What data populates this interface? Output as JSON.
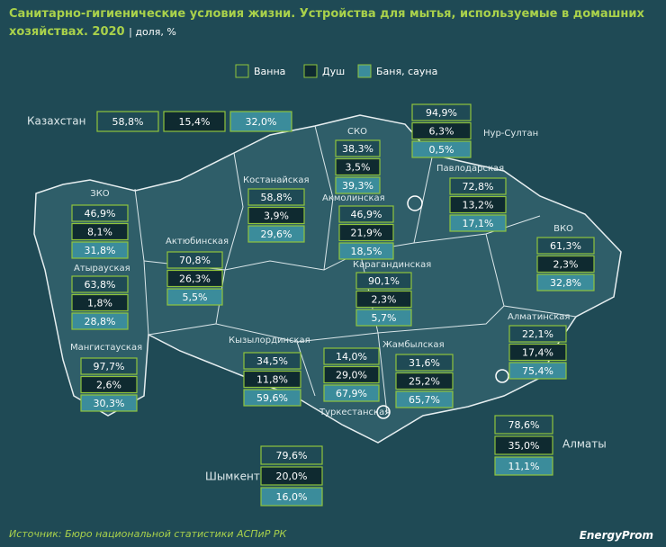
{
  "header": {
    "title": "Санитарно-гигиенические условия жизни. Устройства для мытья, используемые в домашних хозяйствах. 2020",
    "subtitle": "| доля, %"
  },
  "legend": [
    "Ванна",
    "Душ",
    "Баня, сауна"
  ],
  "regions": [
    {
      "name": "Казахстан",
      "values": [
        "58,8%",
        "15,4%",
        "32,0%"
      ]
    },
    {
      "name": "СКО",
      "values": [
        "38,3%",
        "3,5%",
        "39,3%"
      ]
    },
    {
      "name": "Нур-Султан",
      "values": [
        "94,9%",
        "6,3%",
        "0,5%"
      ]
    },
    {
      "name": "Павлодарская",
      "values": [
        "72,8%",
        "13,2%",
        "17,1%"
      ]
    },
    {
      "name": "Костанайская",
      "values": [
        "58,8%",
        "3,9%",
        "29,6%"
      ]
    },
    {
      "name": "Акмолинская",
      "values": [
        "46,9%",
        "21,9%",
        "18,5%"
      ]
    },
    {
      "name": "ЗКО",
      "values": [
        "46,9%",
        "8,1%",
        "31,8%"
      ]
    },
    {
      "name": "Атырауская",
      "values": [
        "63,8%",
        "1,8%",
        "28,8%"
      ]
    },
    {
      "name": "Актюбинская",
      "values": [
        "70,8%",
        "26,3%",
        "5,5%"
      ]
    },
    {
      "name": "ВКО",
      "values": [
        "61,3%",
        "2,3%",
        "32,8%"
      ]
    },
    {
      "name": "Карагандинская",
      "values": [
        "90,1%",
        "2,3%",
        "5,7%"
      ]
    },
    {
      "name": "Алматинская",
      "values": [
        "22,1%",
        "17,4%",
        "75,4%"
      ]
    },
    {
      "name": "Мангистауская",
      "values": [
        "97,7%",
        "2,6%",
        "30,3%"
      ]
    },
    {
      "name": "Кызылординская",
      "values": [
        "34,5%",
        "11,8%",
        "59,6%"
      ]
    },
    {
      "name": "Туркестанская",
      "values": [
        "14,0%",
        "29,0%",
        "67,9%"
      ]
    },
    {
      "name": "Жамбылская",
      "values": [
        "31,6%",
        "25,2%",
        "65,7%"
      ]
    },
    {
      "name": "Алматы",
      "values": [
        "78,6%",
        "35,0%",
        "11,1%"
      ]
    },
    {
      "name": "Шымкент",
      "values": [
        "79,6%",
        "20,0%",
        "16,0%"
      ]
    }
  ],
  "footer": {
    "source": "Источник: Бюро национальной статистики АСПиР РК",
    "logo": "EnergyProm"
  }
}
